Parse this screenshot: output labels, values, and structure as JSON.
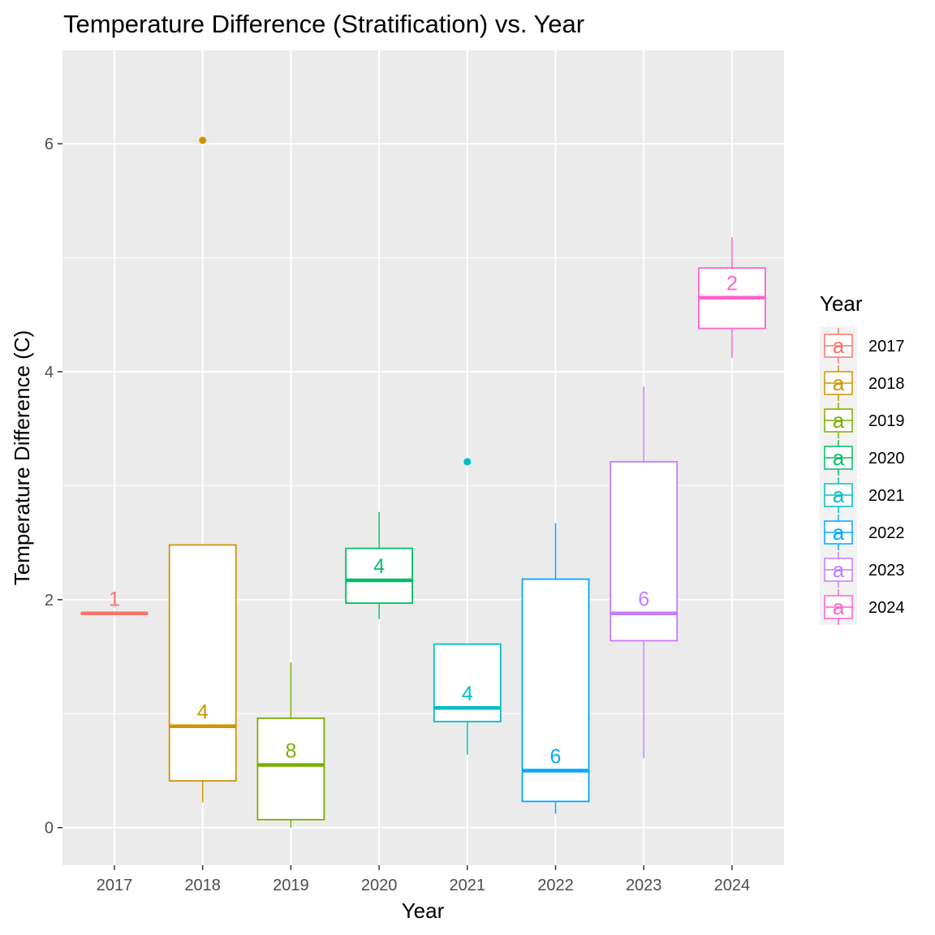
{
  "chart_data": {
    "type": "boxplot",
    "title": "Temperature Difference (Stratification) vs. Year",
    "xlabel": "Year",
    "ylabel": "Temperature Difference (C)",
    "ylim": [
      -0.3,
      6.8
    ],
    "y_ticks": [
      0,
      2,
      4,
      6
    ],
    "grid": true,
    "legend": {
      "title": "Year",
      "placement": "right",
      "key_glyph": "a"
    },
    "categories": [
      "2017",
      "2018",
      "2019",
      "2020",
      "2021",
      "2022",
      "2023",
      "2024"
    ],
    "series": [
      {
        "category": "2017",
        "color": "#F8766D",
        "min": 1.88,
        "q1": 1.88,
        "median": 1.88,
        "q3": 1.88,
        "max": 1.88,
        "outliers": [],
        "count": "1"
      },
      {
        "category": "2018",
        "color": "#CD9600",
        "min": 0.22,
        "q1": 0.41,
        "median": 0.89,
        "q3": 2.48,
        "max": 2.48,
        "outliers": [
          6.03
        ],
        "count": "4"
      },
      {
        "category": "2019",
        "color": "#7CAE00",
        "min": 0.0,
        "q1": 0.07,
        "median": 0.55,
        "q3": 0.96,
        "max": 1.45,
        "outliers": [],
        "count": "8"
      },
      {
        "category": "2020",
        "color": "#00BE67",
        "min": 1.83,
        "q1": 1.97,
        "median": 2.17,
        "q3": 2.45,
        "max": 2.77,
        "outliers": [],
        "count": "4"
      },
      {
        "category": "2021",
        "color": "#00BFC4",
        "min": 0.64,
        "q1": 0.93,
        "median": 1.05,
        "q3": 1.61,
        "max": 1.61,
        "outliers": [
          3.21
        ],
        "count": "4"
      },
      {
        "category": "2022",
        "color": "#00A9FF",
        "min": 0.12,
        "q1": 0.23,
        "median": 0.5,
        "q3": 2.18,
        "max": 2.67,
        "outliers": [],
        "count": "6"
      },
      {
        "category": "2023",
        "color": "#C77CFF",
        "min": 0.61,
        "q1": 1.64,
        "median": 1.88,
        "q3": 3.21,
        "max": 3.87,
        "outliers": [],
        "count": "6"
      },
      {
        "category": "2024",
        "color": "#FF61CC",
        "min": 4.12,
        "q1": 4.38,
        "median": 4.65,
        "q3": 4.91,
        "max": 5.18,
        "outliers": [],
        "count": "2"
      }
    ]
  }
}
